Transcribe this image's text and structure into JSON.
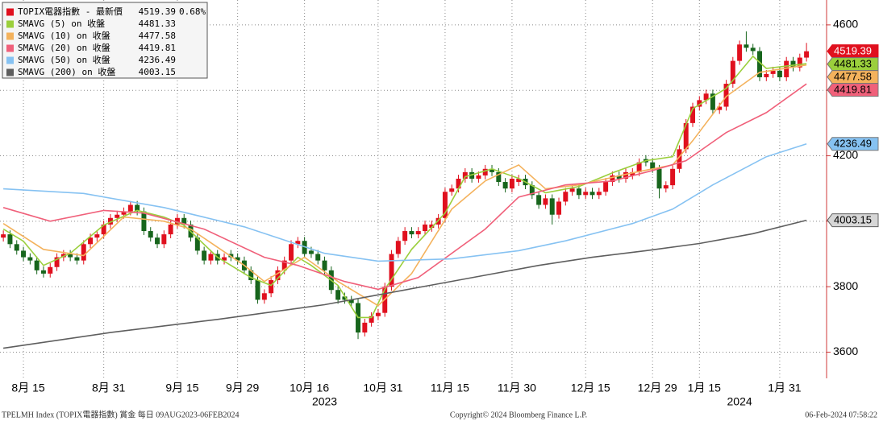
{
  "chart_data": {
    "type": "candlestick",
    "candles": {
      "name": "TOPIX電器指數 - 最新價",
      "change": "0.68%",
      "up_color": "#e0101e",
      "down_color": "#17651c",
      "open": [
        3950,
        3960,
        3930,
        3910,
        3890,
        3880,
        3850,
        3840,
        3860,
        3890,
        3900,
        3890,
        3880,
        3930,
        3950,
        3960,
        3990,
        4010,
        4020,
        4030,
        4050,
        4030,
        3970,
        3950,
        3930,
        3960,
        3990,
        4010,
        3990,
        3950,
        3910,
        3880,
        3900,
        3880,
        3900,
        3890,
        3880,
        3850,
        3820,
        3760,
        3780,
        3820,
        3850,
        3880,
        3930,
        3940,
        3910,
        3900,
        3880,
        3850,
        3790,
        3770,
        3760,
        3750,
        3660,
        3690,
        3710,
        3720,
        3800,
        3900,
        3940,
        3970,
        3960,
        3970,
        3980,
        3990,
        4010,
        4090,
        4100,
        4130,
        4150,
        4130,
        4140,
        4160,
        4150,
        4120,
        4100,
        4120,
        4130,
        4110,
        4080,
        4050,
        4070,
        4020,
        4060,
        4090,
        4100,
        4080,
        4090,
        4080,
        4090,
        4120,
        4140,
        4130,
        4140,
        4150,
        4190,
        4180,
        4160,
        4100,
        4110,
        4160,
        4220,
        4300,
        4350,
        4370,
        4390,
        4340,
        4350,
        4420,
        4490,
        4540,
        4530,
        4520,
        4440,
        4450,
        4460,
        4440,
        4490,
        4470,
        4500
      ],
      "high": [
        3972,
        3972,
        3942,
        3922,
        3902,
        3892,
        3862,
        3872,
        3902,
        3912,
        3912,
        3902,
        3942,
        3962,
        3972,
        4002,
        4022,
        4032,
        4042,
        4062,
        4062,
        4042,
        3982,
        3962,
        3972,
        4002,
        4022,
        4022,
        4002,
        3962,
        3922,
        3912,
        3912,
        3902,
        3912,
        3902,
        3892,
        3862,
        3832,
        3792,
        3832,
        3862,
        3892,
        3942,
        3952,
        3952,
        3922,
        3912,
        3892,
        3862,
        3802,
        3782,
        3772,
        3762,
        3702,
        3722,
        3732,
        3812,
        3912,
        3952,
        3982,
        3982,
        3982,
        4002,
        4002,
        4022,
        4102,
        4112,
        4142,
        4162,
        4162,
        4152,
        4172,
        4172,
        4162,
        4132,
        4142,
        4142,
        4142,
        4122,
        4092,
        4082,
        4082,
        4072,
        4102,
        4112,
        4112,
        4102,
        4102,
        4102,
        4132,
        4152,
        4152,
        4162,
        4162,
        4192,
        4202,
        4192,
        4172,
        4122,
        4172,
        4232,
        4312,
        4362,
        4382,
        4402,
        4402,
        4362,
        4432,
        4502,
        4552,
        4580,
        4542,
        4532,
        4462,
        4472,
        4472,
        4502,
        4502,
        4512,
        4545
      ],
      "low": [
        3938,
        3918,
        3898,
        3878,
        3868,
        3838,
        3828,
        3828,
        3848,
        3878,
        3878,
        3868,
        3868,
        3918,
        3938,
        3948,
        3978,
        3998,
        4008,
        4018,
        4018,
        3958,
        3938,
        3918,
        3918,
        3948,
        3978,
        3978,
        3938,
        3898,
        3868,
        3868,
        3868,
        3868,
        3878,
        3868,
        3838,
        3808,
        3748,
        3748,
        3768,
        3808,
        3838,
        3868,
        3918,
        3888,
        3888,
        3868,
        3838,
        3778,
        3748,
        3748,
        3738,
        3640,
        3648,
        3678,
        3698,
        3708,
        3788,
        3888,
        3928,
        3948,
        3948,
        3958,
        3968,
        3978,
        3998,
        4078,
        4088,
        4118,
        4118,
        4118,
        4128,
        4138,
        4108,
        4088,
        4088,
        4108,
        4098,
        4068,
        4038,
        4038,
        3990,
        4008,
        4048,
        4078,
        4068,
        4068,
        4068,
        4068,
        4078,
        4108,
        4118,
        4118,
        4128,
        4138,
        4168,
        4148,
        4070,
        4088,
        4098,
        4148,
        4208,
        4288,
        4338,
        4358,
        4328,
        4328,
        4338,
        4408,
        4478,
        4518,
        4508,
        4428,
        4428,
        4438,
        4428,
        4428,
        4458,
        4458,
        4488
      ],
      "close": [
        3960,
        3930,
        3910,
        3890,
        3880,
        3850,
        3840,
        3860,
        3890,
        3900,
        3890,
        3880,
        3930,
        3950,
        3960,
        3990,
        4010,
        4020,
        4030,
        4050,
        4030,
        3970,
        3950,
        3930,
        3960,
        3990,
        4010,
        3990,
        3950,
        3910,
        3880,
        3900,
        3880,
        3890,
        3890,
        3880,
        3850,
        3820,
        3760,
        3780,
        3820,
        3850,
        3880,
        3930,
        3940,
        3900,
        3900,
        3880,
        3850,
        3790,
        3760,
        3760,
        3750,
        3660,
        3690,
        3710,
        3720,
        3800,
        3900,
        3940,
        3970,
        3960,
        3970,
        3990,
        3990,
        4010,
        4090,
        4100,
        4130,
        4150,
        4130,
        4140,
        4160,
        4150,
        4120,
        4100,
        4130,
        4130,
        4110,
        4080,
        4050,
        4070,
        4020,
        4060,
        4090,
        4100,
        4080,
        4090,
        4080,
        4090,
        4120,
        4140,
        4130,
        4150,
        4150,
        4180,
        4180,
        4160,
        4100,
        4110,
        4160,
        4220,
        4300,
        4350,
        4370,
        4390,
        4340,
        4350,
        4420,
        4490,
        4540,
        4530,
        4520,
        4440,
        4450,
        4460,
        4440,
        4490,
        4470,
        4500,
        4519.39
      ]
    },
    "series": [
      {
        "name": "SMAVG (5)  on 收盤",
        "color": "#9bcf3c",
        "x": [
          0,
          3,
          6,
          10,
          15,
          20,
          24,
          27,
          32,
          37,
          40,
          44,
          46,
          50,
          53,
          55,
          57,
          61,
          66,
          69,
          73,
          77,
          81,
          86,
          91,
          96,
          100,
          103,
          108,
          112,
          114,
          120
        ],
        "values": [
          3976,
          3939,
          3865,
          3902,
          3988,
          4033,
          4013,
          3988,
          3890,
          3828,
          3804,
          3890,
          3865,
          3804,
          3706,
          3706,
          3792,
          3914,
          4025,
          4136,
          4160,
          4131,
          4087,
          4106,
          4148,
          4185,
          4197,
          4344,
          4406,
          4504,
          4467,
          4481.33
        ]
      },
      {
        "name": "SMAVG (10)  on 收盤",
        "color": "#f4b25c",
        "x": [
          0,
          6,
          12,
          18,
          24,
          28,
          36,
          39,
          45,
          50,
          56,
          61,
          67,
          72,
          77,
          81,
          86,
          94,
          100,
          103,
          108,
          113,
          120
        ],
        "values": [
          3993,
          3914,
          3895,
          4013,
          4000,
          3976,
          3865,
          3816,
          3890,
          3816,
          3742,
          3840,
          4037,
          4123,
          4172,
          4099,
          4111,
          4148,
          4172,
          4246,
          4381,
          4455,
          4477.58
        ]
      },
      {
        "name": "SMAVG (20)  on 收盤",
        "color": "#f0607a",
        "x": [
          0,
          7,
          15,
          21,
          30,
          39,
          44,
          51,
          56,
          62,
          72,
          77,
          84,
          91,
          97,
          102,
          108,
          114,
          120
        ],
        "values": [
          4042,
          4000,
          4033,
          4025,
          3976,
          3890,
          3865,
          3816,
          3792,
          3828,
          3976,
          4074,
          4111,
          4123,
          4155,
          4185,
          4271,
          4332,
          4419.81
        ]
      },
      {
        "name": "SMAVG (50)  on 收盤",
        "color": "#86c2f2",
        "x": [
          0,
          12,
          24,
          36,
          48,
          56,
          67,
          77,
          84,
          94,
          100,
          106,
          114,
          120
        ],
        "values": [
          4099,
          4085,
          4042,
          3983,
          3902,
          3878,
          3885,
          3910,
          3940,
          3993,
          4037,
          4111,
          4197,
          4236.49
        ]
      },
      {
        "name": "SMAVG (200)  on 收盤",
        "color": "#5e5e5e",
        "x": [
          0,
          16,
          32,
          48,
          56,
          64,
          72,
          80,
          88,
          96,
          104,
          112,
          120
        ],
        "values": [
          3612,
          3660,
          3700,
          3745,
          3775,
          3805,
          3835,
          3865,
          3890,
          3910,
          3932,
          3962,
          4003.15
        ]
      }
    ],
    "xlim": [
      -0.5,
      123
    ],
    "ylim": [
      3520,
      4676
    ],
    "yticks": [
      3600,
      3800,
      4000,
      4200,
      4400,
      4600
    ],
    "xticks": [
      {
        "value": 3,
        "label": "8月 15"
      },
      {
        "value": 15,
        "label": "8月 31"
      },
      {
        "value": 26,
        "label": "9月 15"
      },
      {
        "value": 35,
        "label": "9月 29"
      },
      {
        "value": 45,
        "label": "10月 16"
      },
      {
        "value": 56,
        "label": "10月 31"
      },
      {
        "value": 66,
        "label": "11月 15"
      },
      {
        "value": 76,
        "label": "11月 30"
      },
      {
        "value": 87,
        "label": "12月 15"
      },
      {
        "value": 97,
        "label": "12月 29"
      },
      {
        "value": 104,
        "label": "1月 15"
      },
      {
        "value": 116,
        "label": "1月 31"
      }
    ],
    "year_ticks": [
      {
        "value": 48,
        "label": "2023"
      },
      {
        "value": 110,
        "label": "2024"
      }
    ],
    "grid": true,
    "footer": {
      "left": "TPELMH Index (TOPIX電器指數) 賞金  每日 09AUG2023-06FEB2024",
      "center": "Copyright© 2024 Bloomberg Finance L.P.",
      "right": "06-Feb-2024 07:58:22"
    }
  }
}
